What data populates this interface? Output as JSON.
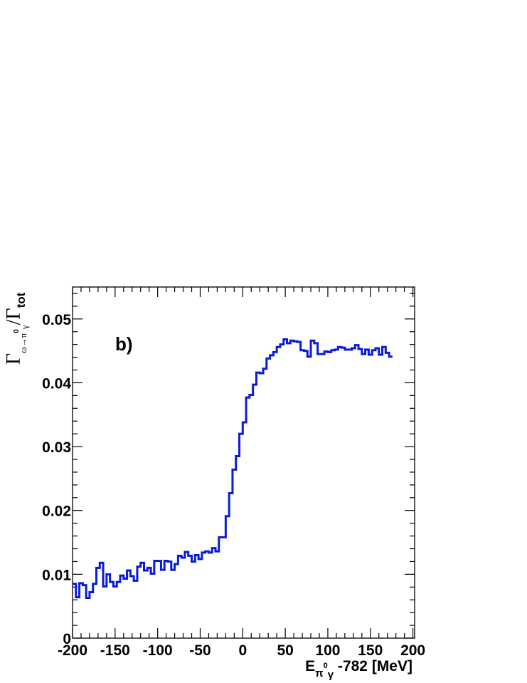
{
  "chart_data": {
    "type": "line",
    "style": "step",
    "annotation": "b)",
    "xlabel": {
      "main": "E",
      "sub_a": "π",
      "sup": "0",
      "sub_b": "γ",
      "suffix": " -782 [MeV]"
    },
    "ylabel": {
      "main": "Γ",
      "sub": "ω→π",
      "sup": "0",
      "sub2": "γ",
      "slash": "/Γ",
      "tot": "tot"
    },
    "xlim": [
      -200,
      202
    ],
    "ylim": [
      0,
      0.055
    ],
    "xticks": [
      -200,
      -150,
      -100,
      -50,
      0,
      50,
      100,
      150,
      200
    ],
    "yticks": [
      0,
      0.01,
      0.02,
      0.03,
      0.04,
      0.05
    ],
    "ytick_labels": [
      "0",
      "0.01",
      "0.02",
      "0.03",
      "0.04",
      "0.05"
    ],
    "grid": false,
    "colors": {
      "line": "#0a1bd9"
    },
    "bin_width": 4,
    "bin_start": -200,
    "values": [
      0.0085,
      0.0064,
      0.0086,
      0.0083,
      0.0063,
      0.0072,
      0.0085,
      0.011,
      0.0118,
      0.0081,
      0.01,
      0.0088,
      0.0081,
      0.0088,
      0.0098,
      0.0093,
      0.0106,
      0.0097,
      0.009,
      0.0112,
      0.0118,
      0.0106,
      0.011,
      0.0101,
      0.0121,
      0.0121,
      0.0107,
      0.0121,
      0.012,
      0.0107,
      0.0116,
      0.0129,
      0.0126,
      0.0135,
      0.0129,
      0.012,
      0.013,
      0.0124,
      0.0134,
      0.0136,
      0.0134,
      0.0141,
      0.0136,
      0.0158,
      0.0158,
      0.0191,
      0.0227,
      0.0264,
      0.0285,
      0.032,
      0.0338,
      0.0377,
      0.0381,
      0.0397,
      0.0416,
      0.0415,
      0.0422,
      0.0438,
      0.0443,
      0.0448,
      0.0456,
      0.046,
      0.0468,
      0.0462,
      0.0466,
      0.0465,
      0.0464,
      0.0451,
      0.045,
      0.0441,
      0.0466,
      0.0462,
      0.0445,
      0.0445,
      0.0449,
      0.0448,
      0.0451,
      0.0452,
      0.0456,
      0.0455,
      0.0452,
      0.0452,
      0.0454,
      0.0459,
      0.0453,
      0.0445,
      0.0452,
      0.0444,
      0.0451,
      0.0454,
      0.0444,
      0.0456,
      0.0447,
      0.0441
    ]
  }
}
